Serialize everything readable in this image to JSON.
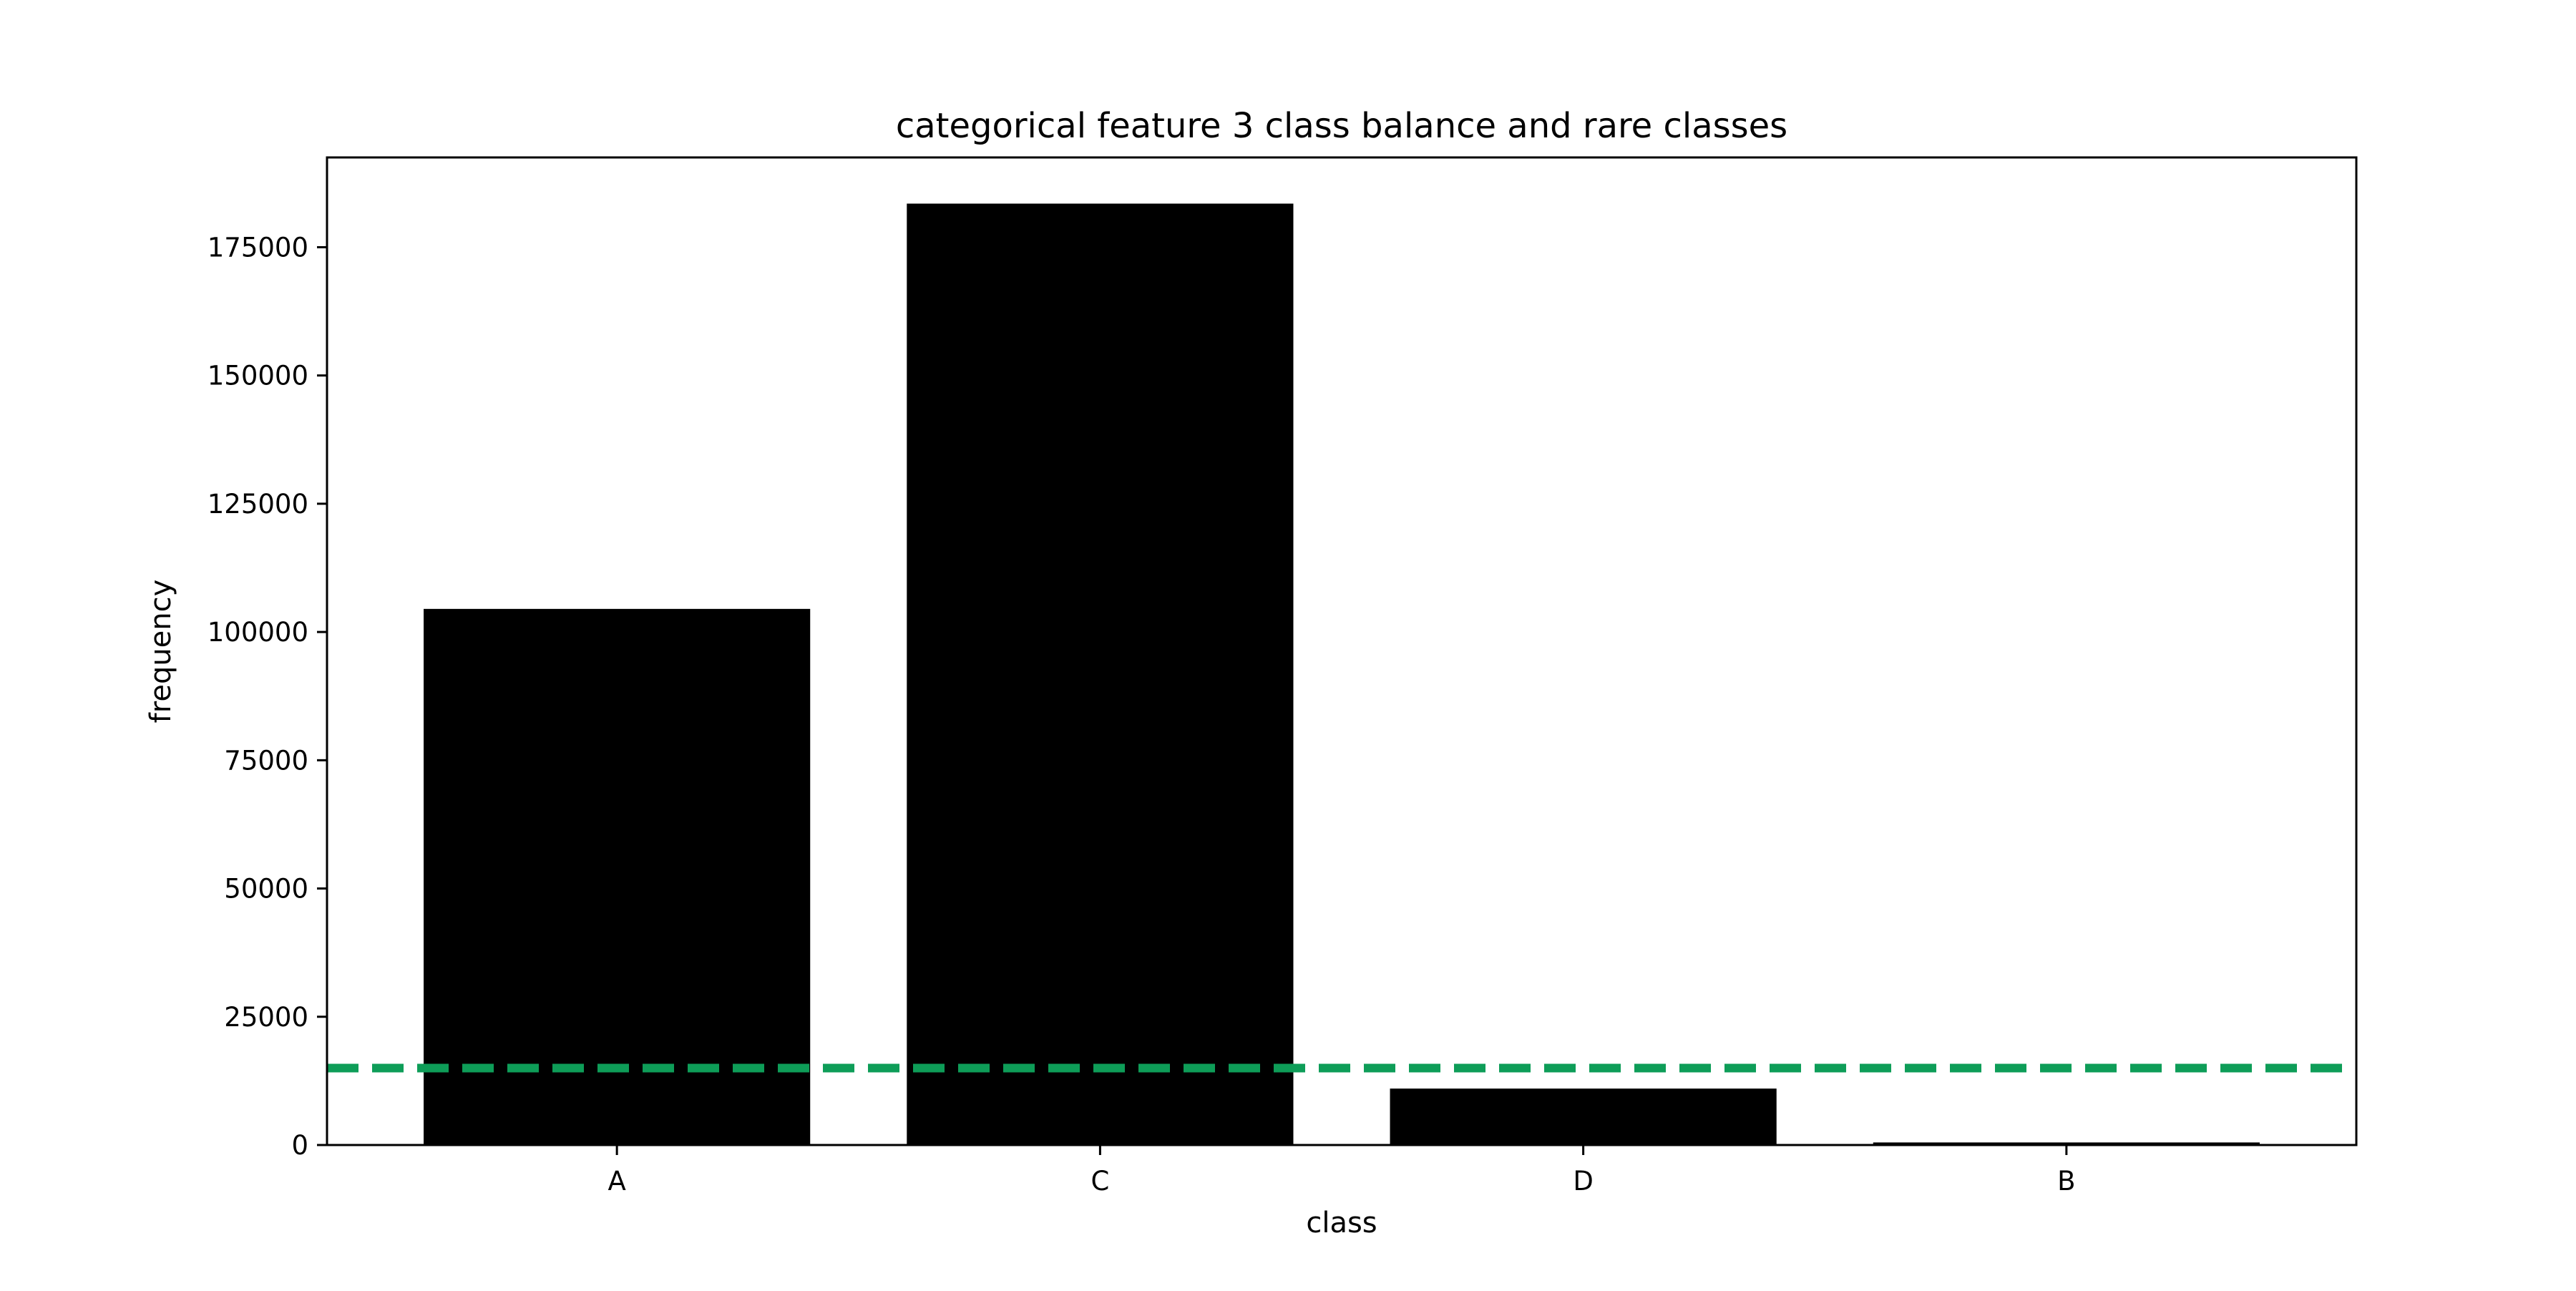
{
  "chart_data": {
    "type": "bar",
    "title": "categorical feature 3 class balance and rare classes",
    "xlabel": "class",
    "ylabel": "frequency",
    "categories": [
      "A",
      "C",
      "D",
      "B"
    ],
    "values": [
      104500,
      183500,
      11000,
      500
    ],
    "ylim": [
      0,
      192500
    ],
    "yticks": [
      0,
      25000,
      50000,
      75000,
      100000,
      125000,
      150000,
      175000
    ],
    "ytick_labels": [
      "0",
      "25000",
      "50000",
      "75000",
      "100000",
      "125000",
      "150000",
      "175000"
    ],
    "grid": false,
    "legend": "none",
    "bar_color": "#000000",
    "threshold": {
      "value": 15000,
      "style": "dashed",
      "color": "#0e9d58"
    }
  }
}
